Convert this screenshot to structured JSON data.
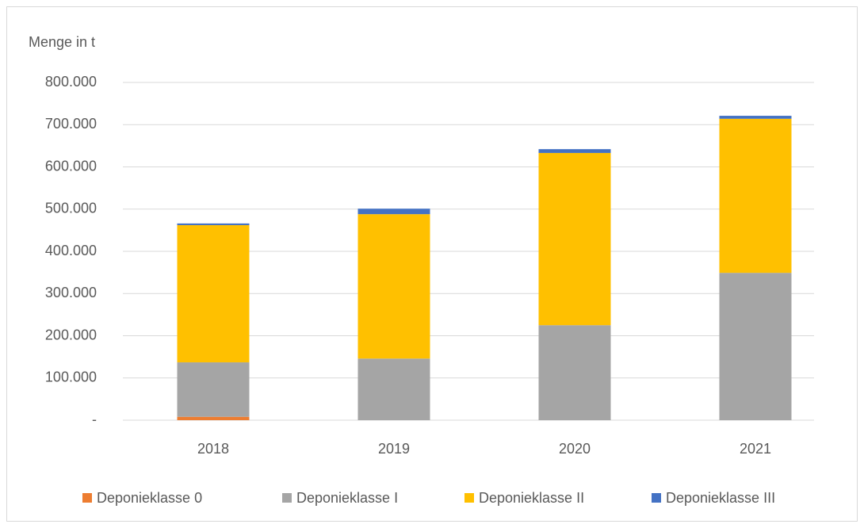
{
  "chart_data": {
    "type": "stacked_bar",
    "y_axis_label": "Menge in t",
    "categories": [
      "2018",
      "2019",
      "2020",
      "2021"
    ],
    "series": [
      {
        "name": "Deponieklasse 0",
        "color": "#ED7D31",
        "values": [
          8000,
          0,
          0,
          0
        ]
      },
      {
        "name": "Deponieklasse I",
        "color": "#A5A5A5",
        "values": [
          129000,
          146000,
          225000,
          349000
        ]
      },
      {
        "name": "Deponieklasse II",
        "color": "#FFC000",
        "values": [
          325000,
          342000,
          408000,
          365000
        ]
      },
      {
        "name": "Deponieklasse III",
        "color": "#4472C4",
        "values": [
          4000,
          13000,
          9000,
          7000
        ]
      }
    ],
    "ylim": [
      0,
      800000
    ],
    "yticks": [
      {
        "value": 0,
        "label": "-"
      },
      {
        "value": 100000,
        "label": "100.000"
      },
      {
        "value": 200000,
        "label": "200.000"
      },
      {
        "value": 300000,
        "label": "300.000"
      },
      {
        "value": 400000,
        "label": "400.000"
      },
      {
        "value": 500000,
        "label": "500.000"
      },
      {
        "value": 600000,
        "label": "600.000"
      },
      {
        "value": 700000,
        "label": "700.000"
      },
      {
        "value": 800000,
        "label": "800.000"
      }
    ],
    "grid": true,
    "legend": "bottom"
  }
}
